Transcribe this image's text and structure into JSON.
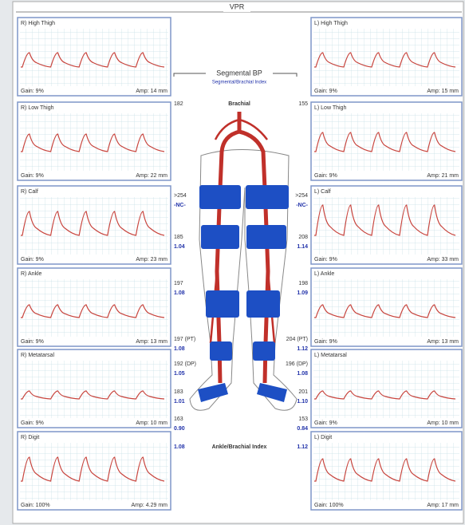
{
  "header": {
    "title": "VPR"
  },
  "panels": {
    "left": [
      {
        "label": "R) High Thigh",
        "gain": "Gain: 9%",
        "amp": "Amp: 14 mm"
      },
      {
        "label": "R) Low Thigh",
        "gain": "Gain: 9%",
        "amp": "Amp: 22 mm"
      },
      {
        "label": "R) Calf",
        "gain": "Gain: 9%",
        "amp": "Amp: 23 mm"
      },
      {
        "label": "R) Ankle",
        "gain": "Gain: 9%",
        "amp": "Amp: 13 mm"
      },
      {
        "label": "R) Metatarsal",
        "gain": "Gain: 9%",
        "amp": "Amp: 10 mm"
      },
      {
        "label": "R) Digit",
        "gain": "Gain: 100%",
        "amp": "Amp: 4.29 mm"
      }
    ],
    "right": [
      {
        "label": "L) High Thigh",
        "gain": "Gain: 9%",
        "amp": "Amp: 15 mm"
      },
      {
        "label": "L) Low Thigh",
        "gain": "Gain: 9%",
        "amp": "Amp: 21 mm"
      },
      {
        "label": "L) Calf",
        "gain": "Gain: 9%",
        "amp": "Amp: 33 mm"
      },
      {
        "label": "L) Ankle",
        "gain": "Gain: 9%",
        "amp": "Amp: 13 mm"
      },
      {
        "label": "L) Metatarsal",
        "gain": "Gain: 9%",
        "amp": "Amp: 10 mm"
      },
      {
        "label": "L) Digit",
        "gain": "Gain: 100%",
        "amp": "Amp: 17 mm"
      }
    ]
  },
  "center": {
    "title": "Segmental BP",
    "subtitle": "Segmental/Brachial Index",
    "brachial_label": "Brachial",
    "abi_label": "Ankle/Brachial Index",
    "left": [
      "182",
      ">254",
      "-NC-",
      "185",
      "1.04",
      "197",
      "1.08",
      "197 (PT)",
      "1.08",
      "192 (DP)",
      "1.05",
      "183",
      "1.01",
      "163",
      "0.90",
      "1.08"
    ],
    "right": [
      "155",
      ">254",
      "-NC-",
      "208",
      "1.14",
      "198",
      "1.09",
      "204 (PT)",
      "1.12",
      "196 (DP)",
      "1.08",
      "201",
      "1.10",
      "153",
      "0.84",
      "1.12"
    ]
  }
}
